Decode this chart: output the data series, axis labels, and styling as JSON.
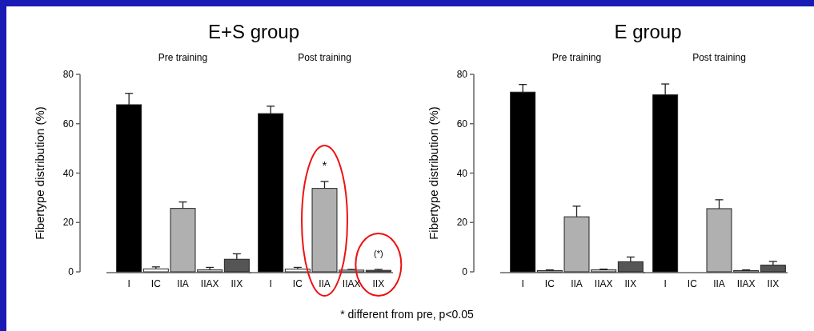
{
  "chart_data": [
    {
      "type": "bar",
      "title": "E+S group",
      "subtitle": "Pre training",
      "ylabel": "Fibertype distribution (%)",
      "categories": [
        "I",
        "IC",
        "IIA",
        "IIAX",
        "IIX"
      ],
      "values": [
        67.7,
        1.2,
        25.7,
        0.8,
        5.1
      ],
      "colors": [
        "#000000",
        "#ffffff",
        "#b0b0b0",
        "#d0d0d0",
        "#555555"
      ],
      "errors": [
        [
          67.7,
          72.3
        ],
        [
          1.2,
          2.0
        ],
        [
          25.7,
          28.3
        ],
        [
          0.8,
          1.8
        ],
        [
          5.1,
          7.3
        ]
      ],
      "ylim": [
        0,
        80
      ],
      "yticks": [
        0,
        20,
        40,
        60,
        80
      ],
      "grid": false
    },
    {
      "type": "bar",
      "subtitle": "Post training",
      "categories": [
        "I",
        "IC",
        "IIA",
        "IIAX",
        "IIX"
      ],
      "values": [
        64.1,
        1.1,
        33.8,
        0.7,
        0.6
      ],
      "colors": [
        "#000000",
        "#ffffff",
        "#b0b0b0",
        "#d0d0d0",
        "#555555"
      ],
      "errors": [
        [
          64.1,
          67.1
        ],
        [
          1.1,
          1.8
        ],
        [
          33.8,
          36.6
        ],
        [
          0.7,
          1.0
        ],
        [
          0.6,
          1.0
        ]
      ],
      "ylim": [
        0,
        80
      ],
      "tick_labels": "x",
      "grid": false,
      "annotations": [
        "*",
        "(*)",
        "* different from pre, p<0.05"
      ]
    },
    {
      "type": "bar",
      "title": "E group",
      "subtitle": "Pre training",
      "ylabel": "Fibertype distribution (%)",
      "categories": [
        "I",
        "IC",
        "IIA",
        "IIAX",
        "IIX"
      ],
      "values": [
        72.8,
        0.5,
        22.3,
        0.8,
        4.1
      ],
      "colors": [
        "#000000",
        "#ffffff",
        "#b0b0b0",
        "#d0d0d0",
        "#555555"
      ],
      "errors": [
        [
          72.8,
          75.9
        ],
        [
          0.5,
          0.8
        ],
        [
          22.3,
          26.6
        ],
        [
          0.8,
          1.1
        ],
        [
          4.1,
          6.0
        ]
      ],
      "ylim": [
        0,
        80
      ],
      "yticks": [
        0,
        20,
        40,
        60,
        80
      ],
      "grid": false
    },
    {
      "type": "bar",
      "subtitle": "Post training",
      "categories": [
        "I",
        "IC",
        "IIA",
        "IIAX",
        "IIX"
      ],
      "values": [
        71.7,
        0,
        25.6,
        0.5,
        2.7
      ],
      "colors": [
        "#000000",
        "#ffffff",
        "#b0b0b0",
        "#d0d0d0",
        "#555555"
      ],
      "errors": [
        [
          71.7,
          76.1
        ],
        null,
        [
          25.6,
          29.2
        ],
        [
          0.5,
          0.8
        ],
        [
          2.7,
          4.2
        ]
      ],
      "ylim": [
        0,
        80
      ],
      "tick_labels": "x",
      "grid": false
    }
  ]
}
